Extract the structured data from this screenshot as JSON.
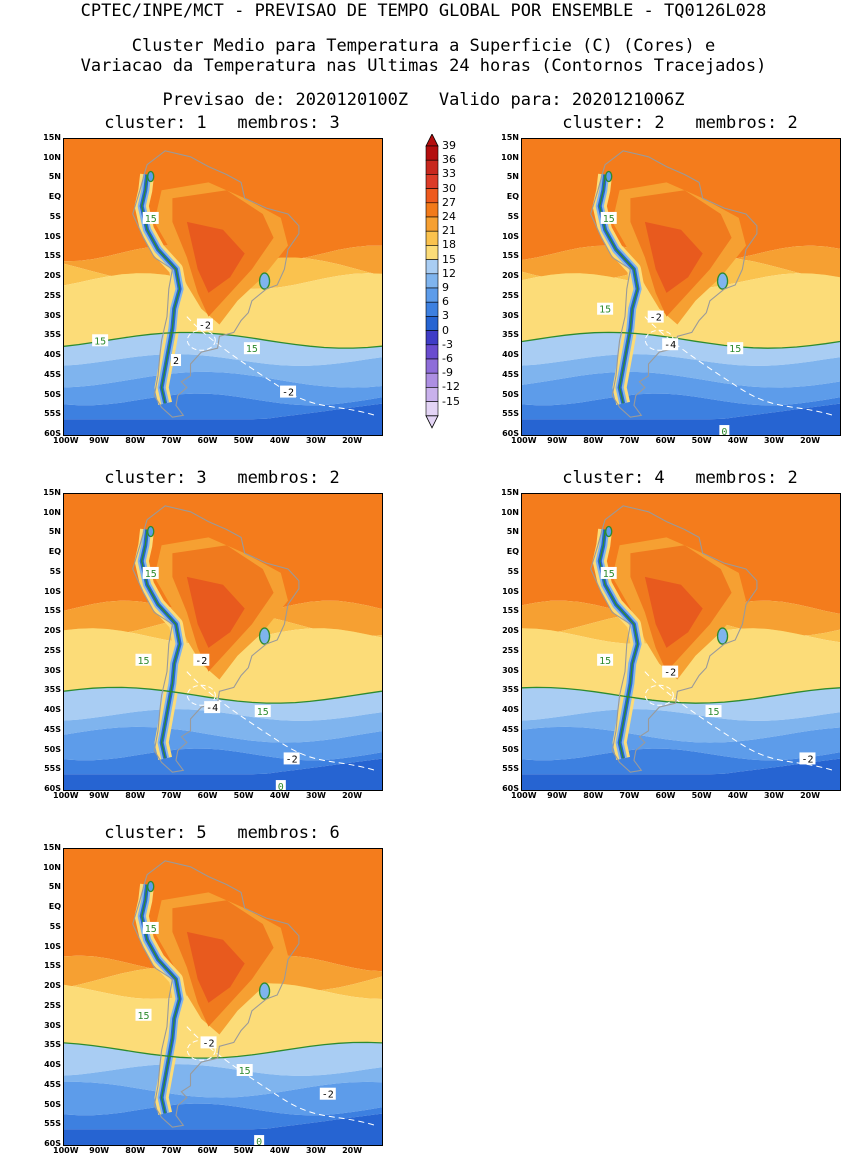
{
  "header": {
    "line1": "CPTEC/INPE/MCT - PREVISAO DE TEMPO GLOBAL POR ENSEMBLE - TQ0126L028",
    "line2": "Cluster Medio para Temperatura a Superficie (C) (Cores) e",
    "line3": "Variacao da Temperatura nas Ultimas 24 horas (Contornos Tracejados)",
    "line4": "Previsao de: 2020120100Z   Valido para: 2020121006Z"
  },
  "axes": {
    "lat_labels": [
      "15N",
      "10N",
      "5N",
      "EQ",
      "5S",
      "10S",
      "15S",
      "20S",
      "25S",
      "30S",
      "35S",
      "40S",
      "45S",
      "50S",
      "55S",
      "60S"
    ],
    "lon_labels": [
      "100W",
      "90W",
      "80W",
      "70W",
      "60W",
      "50W",
      "40W",
      "30W",
      "20W"
    ]
  },
  "colorbar": {
    "labels": [
      "39",
      "36",
      "33",
      "30",
      "27",
      "24",
      "21",
      "18",
      "15",
      "12",
      "9",
      "6",
      "3",
      "0",
      "-3",
      "-6",
      "-9",
      "-12",
      "-15"
    ],
    "colors": [
      "#b40e0e",
      "#c8281e",
      "#dc3c28",
      "#ee5a1e",
      "#f27a1a",
      "#f6a032",
      "#fac24e",
      "#fcdc78",
      "#a9cdf3",
      "#7fb4ee",
      "#5d9cea",
      "#3d80e0",
      "#2664d2",
      "#3f3cc6",
      "#6a4ccf",
      "#8e6dd9",
      "#ad8fe2",
      "#c9b1ec",
      "#e3d4f5"
    ],
    "top_arrow": "#b40e0e",
    "bottom_arrow": "#e3d4f5"
  },
  "panels": [
    {
      "title": "cluster: 1   membros: 3",
      "labels": [
        {
          "t": "15",
          "lon": -76,
          "lat": -5
        },
        {
          "t": "15",
          "lon": -90,
          "lat": -36
        },
        {
          "t": "15",
          "lon": -48,
          "lat": -38
        },
        {
          "t": "-2",
          "lon": -61,
          "lat": -32
        },
        {
          "t": "2",
          "lon": -69,
          "lat": -41
        },
        {
          "t": "-2",
          "lon": -38,
          "lat": -49
        }
      ]
    },
    {
      "title": "cluster: 2   membros: 2",
      "labels": [
        {
          "t": "15",
          "lon": -76,
          "lat": -5
        },
        {
          "t": "15",
          "lon": -77,
          "lat": -28
        },
        {
          "t": "15",
          "lon": -41,
          "lat": -38
        },
        {
          "t": "-2",
          "lon": -63,
          "lat": -30
        },
        {
          "t": "-4",
          "lon": -59,
          "lat": -37
        },
        {
          "t": "0",
          "lon": -44,
          "lat": -59
        }
      ]
    },
    {
      "title": "cluster: 3   membros: 2",
      "labels": [
        {
          "t": "15",
          "lon": -76,
          "lat": -5
        },
        {
          "t": "15",
          "lon": -78,
          "lat": -27
        },
        {
          "t": "15",
          "lon": -45,
          "lat": -40
        },
        {
          "t": "-2",
          "lon": -62,
          "lat": -27
        },
        {
          "t": "-4",
          "lon": -59,
          "lat": -39
        },
        {
          "t": "-2",
          "lon": -37,
          "lat": -52
        },
        {
          "t": "0",
          "lon": -40,
          "lat": -59
        }
      ]
    },
    {
      "title": "cluster: 4   membros: 2",
      "labels": [
        {
          "t": "15",
          "lon": -76,
          "lat": -5
        },
        {
          "t": "15",
          "lon": -77,
          "lat": -27
        },
        {
          "t": "15",
          "lon": -47,
          "lat": -40
        },
        {
          "t": "-2",
          "lon": -59,
          "lat": -30
        },
        {
          "t": "-2",
          "lon": -21,
          "lat": -52
        }
      ]
    },
    {
      "title": "cluster: 5   membros: 6",
      "labels": [
        {
          "t": "15",
          "lon": -76,
          "lat": -5
        },
        {
          "t": "15",
          "lon": -78,
          "lat": -27
        },
        {
          "t": "15",
          "lon": -50,
          "lat": -41
        },
        {
          "t": "-2",
          "lon": -60,
          "lat": -34
        },
        {
          "t": "-2",
          "lon": -27,
          "lat": -47
        },
        {
          "t": "0",
          "lon": -46,
          "lat": -59
        }
      ]
    }
  ]
}
